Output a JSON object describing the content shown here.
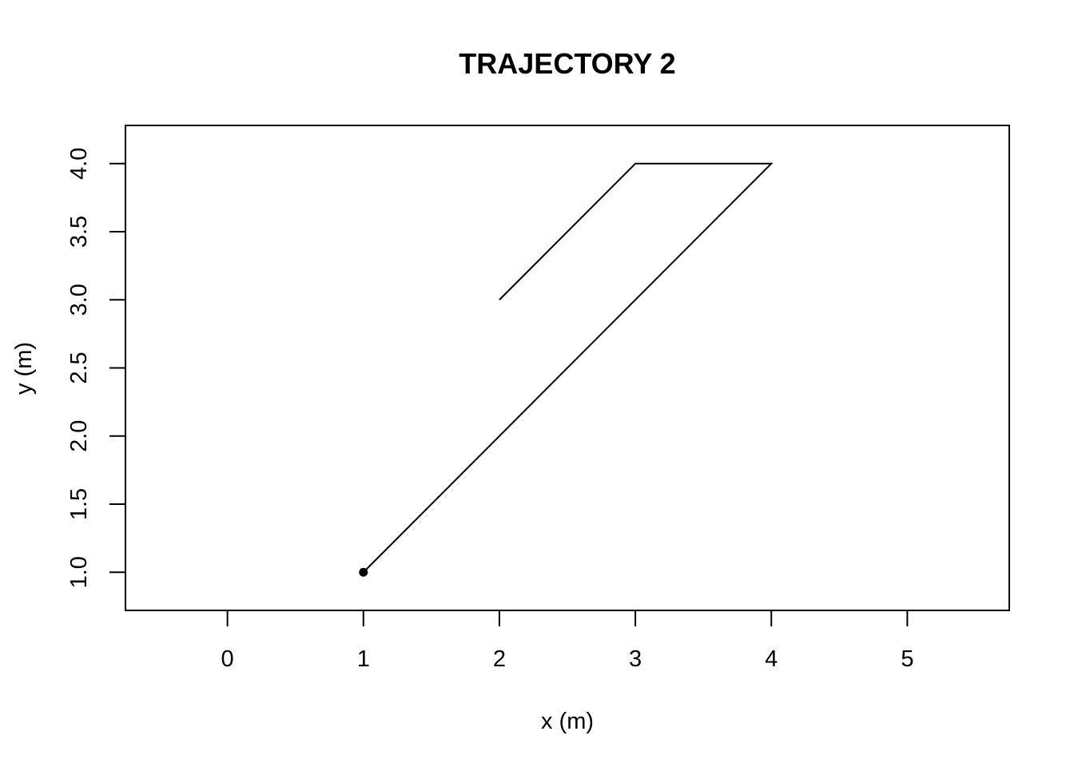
{
  "chart_data": {
    "type": "line",
    "title": "TRAJECTORY 2",
    "xlabel": "x (m)",
    "ylabel": "y (m)",
    "xlim": [
      -0.75,
      5.75
    ],
    "ylim": [
      0.72,
      4.28
    ],
    "x_ticks": [
      0,
      1,
      2,
      3,
      4,
      5
    ],
    "x_tick_labels": [
      "0",
      "1",
      "2",
      "3",
      "4",
      "5"
    ],
    "y_ticks": [
      1.0,
      1.5,
      2.0,
      2.5,
      3.0,
      3.5,
      4.0
    ],
    "y_tick_labels": [
      "1.0",
      "1.5",
      "2.0",
      "2.5",
      "3.0",
      "3.5",
      "4.0"
    ],
    "grid": false,
    "series": [
      {
        "points": [
          {
            "x": 1,
            "y": 1
          },
          {
            "x": 4,
            "y": 4
          },
          {
            "x": 3,
            "y": 4
          },
          {
            "x": 2,
            "y": 3
          }
        ],
        "start_marker": {
          "x": 1,
          "y": 1
        }
      }
    ],
    "colors": {
      "line": "#000000",
      "background": "#ffffff"
    }
  }
}
